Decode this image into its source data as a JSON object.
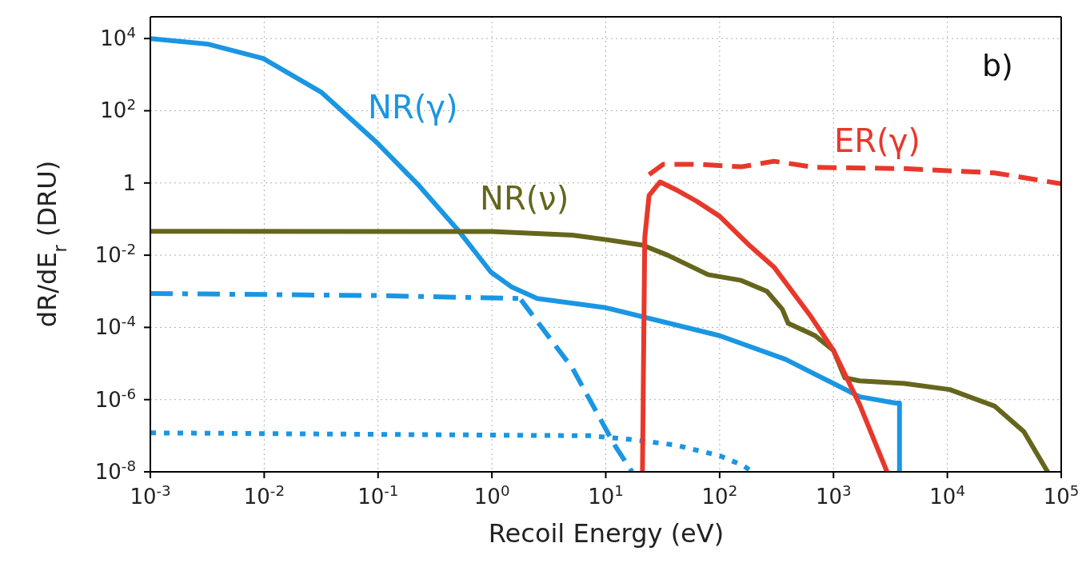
{
  "chart_data": {
    "type": "line",
    "xlabel": "Recoil Energy (eV)",
    "ylabel": "dR/dE$_{r}$ (DRU)",
    "annotations": [
      "b)"
    ],
    "log": "xy",
    "grid": true,
    "xlim": [
      0.001,
      100000
    ],
    "xticks": [
      {
        "value": 0.001,
        "label": "10$^{-3}$"
      },
      {
        "value": 0.01,
        "label": "10$^{-2}$"
      },
      {
        "value": 0.1,
        "label": "10$^{-1}$"
      },
      {
        "value": 1,
        "label": "10$^{0}$"
      },
      {
        "value": 10,
        "label": "10$^{1}$"
      },
      {
        "value": 100,
        "label": "10$^{2}$"
      },
      {
        "value": 1000,
        "label": "10$^{3}$"
      },
      {
        "value": 10000,
        "label": "10$^{4}$"
      },
      {
        "value": 100000,
        "label": "10$^{5}$"
      }
    ],
    "ylim": [
      1e-08,
      40000
    ],
    "yticks": [
      {
        "value": 1e-08,
        "label": "10$^{-8}$"
      },
      {
        "value": 1e-06,
        "label": "10$^{-6}$"
      },
      {
        "value": 0.0001,
        "label": "10$^{-4}$"
      },
      {
        "value": 0.01,
        "label": "10$^{-2}$"
      },
      1,
      {
        "value": 100,
        "label": "10$^{2}$"
      },
      {
        "value": 10000,
        "label": "10$^{4}$"
      }
    ],
    "series": [
      {
        "name": "NR(γ)",
        "color": "#1a96e3",
        "line_style": "solid",
        "x": [
          0.001,
          0.0032,
          0.0098,
          0.032,
          0.098,
          0.23,
          0.52,
          0.98,
          1.5,
          2.5,
          10,
          100,
          380,
          1000,
          1700,
          3500,
          3800,
          3800
        ],
        "values": [
          10000,
          7000,
          2800,
          320,
          13,
          0.83,
          0.044,
          0.0034,
          0.0013,
          0.00063,
          0.00035,
          5.9e-05,
          1.3e-05,
          2.8e-06,
          1.2e-06,
          8e-07,
          8e-07,
          1e-08
        ]
      },
      {
        "color": "#1a96e3",
        "line_style": "dashdot",
        "x": [
          0.001,
          0.1,
          1.8
        ],
        "values": [
          0.00087,
          0.00076,
          0.00063
        ]
      },
      {
        "color": "#1a96e3",
        "line_style": "dashed",
        "x": [
          1.8,
          5.1,
          12,
          17
        ],
        "values": [
          0.00058,
          7.4e-06,
          5.4e-08,
          1e-08
        ]
      },
      {
        "color": "#1a96e3",
        "line_style": "dotted",
        "x": [
          0.001,
          7.1,
          16,
          41,
          100,
          160,
          195
        ],
        "values": [
          1.2e-07,
          1e-07,
          8e-08,
          5.5e-08,
          2.8e-08,
          1.5e-08,
          1e-08
        ]
      },
      {
        "name": "NR(ν)",
        "color": "#65661c",
        "line_style": "solid",
        "x": [
          0.001,
          1,
          5.1,
          10,
          21,
          35,
          79,
          155,
          260,
          355,
          400,
          690,
          1000,
          1260,
          1700,
          4200,
          10500,
          26000,
          47000,
          76000
        ],
        "values": [
          0.046,
          0.045,
          0.036,
          0.027,
          0.019,
          0.01,
          0.0029,
          0.002,
          0.001,
          0.00032,
          0.00013,
          5.9e-05,
          2.3e-05,
          4e-06,
          3.3e-06,
          2.8e-06,
          1.9e-06,
          6.6e-07,
          1.3e-07,
          1e-08
        ]
      },
      {
        "color": "#e8382b",
        "line_style": "solid",
        "x": [
          21,
          22,
          24,
          30,
          41,
          63,
          100,
          185,
          300,
          620,
          1000,
          1700,
          2950
        ],
        "values": [
          1e-08,
          0.031,
          0.45,
          1.07,
          0.66,
          0.31,
          0.12,
          0.018,
          0.0047,
          0.00022,
          2.3e-05,
          7.2e-07,
          1e-08
        ]
      },
      {
        "name": "ER(γ)",
        "color": "#e8382b",
        "line_style": "dashed",
        "x": [
          24,
          32,
          63,
          155,
          300,
          690,
          4200,
          26000,
          100000
        ],
        "values": [
          1.7,
          3.3,
          3.3,
          2.8,
          4,
          2.7,
          2.5,
          1.9,
          0.95
        ]
      }
    ]
  }
}
